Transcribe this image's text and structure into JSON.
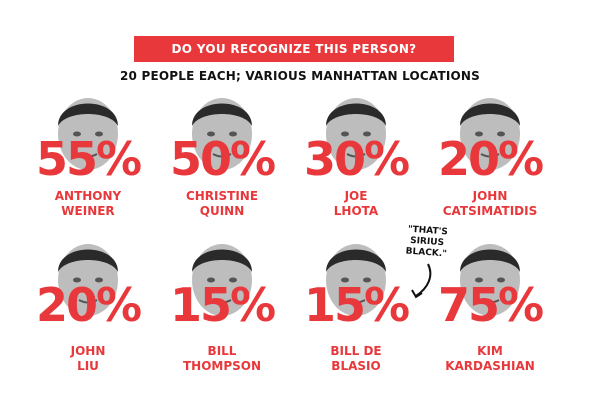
{
  "colors": {
    "accent": "#e8383b",
    "text": "#111111",
    "face": "#bdbdbd",
    "face_dark": "#2a2a2a"
  },
  "header": {
    "title": "DO YOU RECOGNIZE THIS PERSON?",
    "subtitle": "20 PEOPLE EACH; VARIOUS MANHATTAN LOCATIONS"
  },
  "annotation": {
    "lines": [
      "\"THAT'S",
      "SIRIUS",
      "BLACK.\""
    ]
  },
  "chart_data": {
    "type": "table",
    "title": "DO YOU RECOGNIZE THIS PERSON?",
    "subtitle": "20 PEOPLE EACH; VARIOUS MANHATTAN LOCATIONS",
    "unit": "%",
    "people": [
      {
        "name_lines": [
          "ANTHONY",
          "WEINER"
        ],
        "value": 55,
        "label": "55%"
      },
      {
        "name_lines": [
          "CHRISTINE",
          "QUINN"
        ],
        "value": 50,
        "label": "50%"
      },
      {
        "name_lines": [
          "JOE",
          "LHOTA"
        ],
        "value": 30,
        "label": "30%"
      },
      {
        "name_lines": [
          "JOHN",
          "CATSIMATIDIS"
        ],
        "value": 20,
        "label": "20%"
      },
      {
        "name_lines": [
          "JOHN",
          "LIU"
        ],
        "value": 20,
        "label": "20%"
      },
      {
        "name_lines": [
          "BILL",
          "THOMPSON"
        ],
        "value": 15,
        "label": "15%"
      },
      {
        "name_lines": [
          "BILL DE",
          "BLASIO"
        ],
        "value": 15,
        "label": "15%"
      },
      {
        "name_lines": [
          "KIM",
          "KARDASHIAN"
        ],
        "value": 75,
        "label": "75%"
      }
    ]
  }
}
